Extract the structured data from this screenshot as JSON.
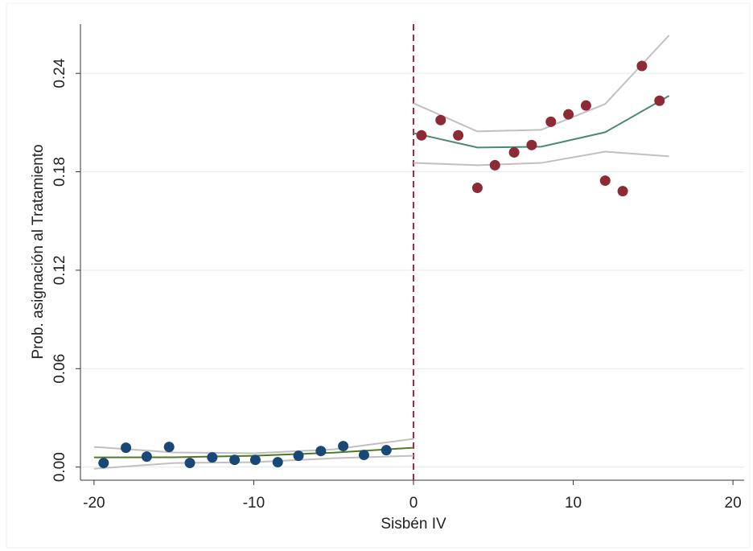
{
  "chart_data": {
    "type": "scatter",
    "xlabel": "Sisbén IV",
    "ylabel": "Prob. asignación al Tratamiento",
    "xlim": [
      -20.85,
      20.7
    ],
    "ylim": [
      -0.008,
      0.27
    ],
    "xticks": [
      -20,
      -10,
      0,
      10,
      20
    ],
    "yticks": [
      {
        "value": 0,
        "label": "0.00"
      },
      {
        "value": 0.06,
        "label": "0.06"
      },
      {
        "value": 0.12,
        "label": "0.12"
      },
      {
        "value": 0.18,
        "label": "0.18"
      },
      {
        "value": 0.24,
        "label": "0.24"
      }
    ],
    "grid": true,
    "cutoff": 0,
    "cutoff_color": "#b0243f",
    "series": [
      {
        "type": "line",
        "color": "#c0c0c0",
        "x": [
          -20,
          -15,
          -10,
          -5,
          0
        ],
        "values": [
          0.0123,
          0.0089,
          0.0084,
          0.0108,
          0.0172
        ]
      },
      {
        "type": "line",
        "color": "#c0c0c0",
        "x": [
          -20,
          -15,
          -10,
          -5,
          0
        ],
        "values": [
          -0.001,
          0.0025,
          0.003,
          0.0054,
          0.0069
        ]
      },
      {
        "type": "line",
        "color": "#4f7a28",
        "x": [
          -20,
          -15,
          -10,
          -5,
          0
        ],
        "values": [
          0.0059,
          0.006,
          0.0069,
          0.0088,
          0.0118
        ]
      },
      {
        "type": "line",
        "color": "#c0c0c0",
        "x": [
          0,
          4,
          8,
          12,
          16
        ],
        "values": [
          0.2218,
          0.2046,
          0.2056,
          0.2213,
          0.2632
        ]
      },
      {
        "type": "line",
        "color": "#c0c0c0",
        "x": [
          0,
          4,
          8,
          12,
          16
        ],
        "values": [
          0.1854,
          0.184,
          0.1854,
          0.1923,
          0.1894
        ]
      },
      {
        "type": "line",
        "color": "#4a8a6e",
        "x": [
          0,
          4,
          8,
          12,
          16
        ],
        "values": [
          0.2036,
          0.1948,
          0.1953,
          0.2041,
          0.2263
        ]
      },
      {
        "type": "scatter",
        "color": "#1a4876",
        "x": [
          -19.4,
          -18.0,
          -16.7,
          -15.3,
          -14.0,
          -12.6,
          -11.2,
          -9.9,
          -8.5,
          -7.2,
          -5.8,
          -4.4,
          -3.1,
          -1.7
        ],
        "values": [
          0.0025,
          0.0118,
          0.0064,
          0.0123,
          0.0025,
          0.0059,
          0.0044,
          0.0044,
          0.003,
          0.0069,
          0.0098,
          0.0128,
          0.0074,
          0.0103
        ]
      },
      {
        "type": "scatter",
        "color": "#8c2a35",
        "x": [
          0.5,
          1.7,
          2.8,
          4.0,
          5.1,
          6.3,
          7.4,
          8.6,
          9.7,
          10.8,
          12.0,
          13.1,
          14.3,
          15.4
        ],
        "values": [
          0.2022,
          0.2115,
          0.2022,
          0.1702,
          0.184,
          0.1918,
          0.1963,
          0.2105,
          0.215,
          0.2204,
          0.1746,
          0.1682,
          0.2445,
          0.2233
        ]
      }
    ]
  }
}
